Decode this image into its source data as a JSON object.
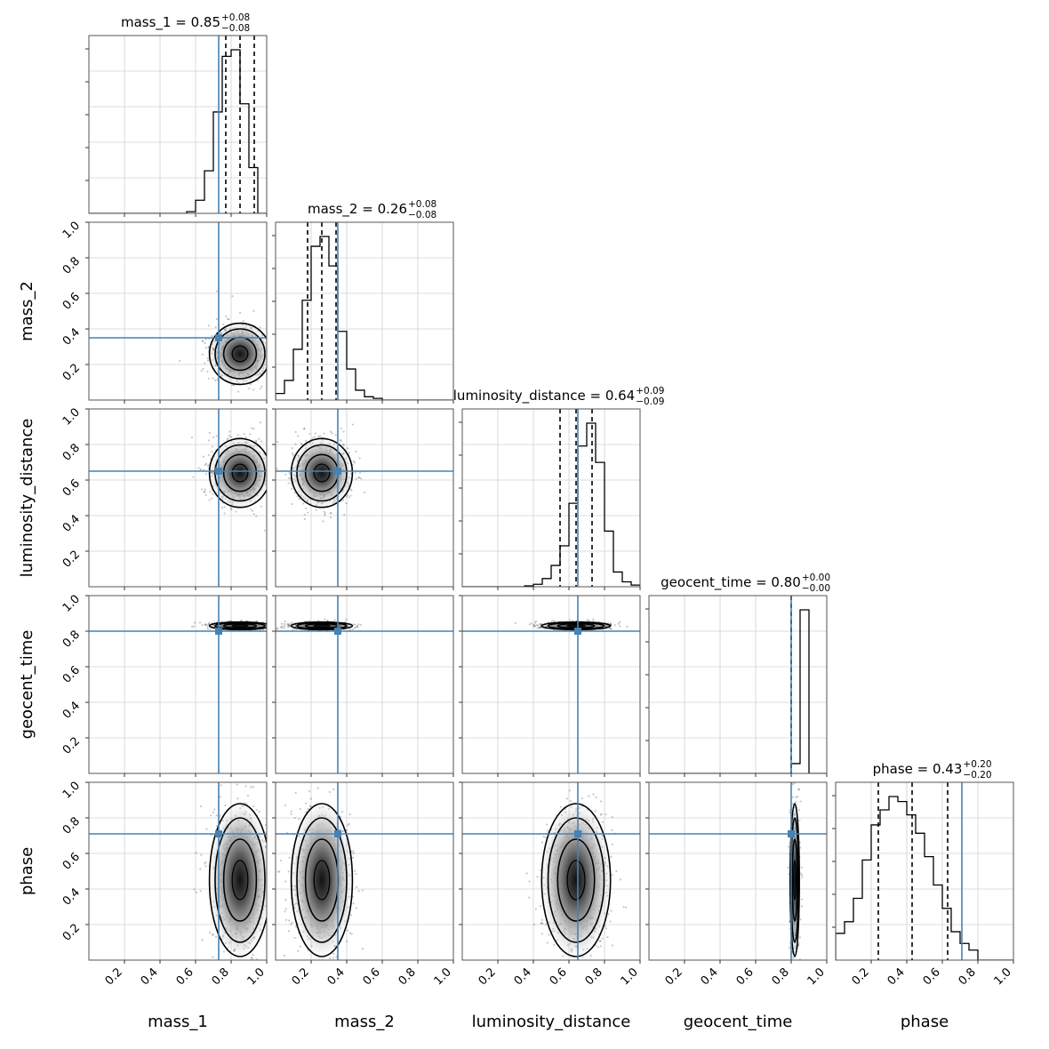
{
  "chart_data": {
    "type": "corner",
    "params": [
      "mass_1",
      "mass_2",
      "luminosity_distance",
      "geocent_time",
      "phase"
    ],
    "axis_labels": [
      "mass_1",
      "mass_2",
      "luminosity_distance",
      "geocent_time",
      "phase"
    ],
    "range": [
      0,
      1
    ],
    "ticks": [
      "0.2",
      "0.4",
      "0.6",
      "0.8",
      "1.0"
    ],
    "grid": true,
    "truth_color": "#4682b4",
    "truths": [
      0.73,
      0.35,
      0.65,
      0.8,
      0.71
    ],
    "titles": [
      {
        "name": "mass_1",
        "eq": " = 0.85",
        "plus": "+0.08",
        "minus": "−0.08"
      },
      {
        "name": "mass_2",
        "eq": " = 0.26",
        "plus": "+0.08",
        "minus": "−0.08"
      },
      {
        "name": "luminosity_distance",
        "eq": " = 0.64",
        "plus": "+0.09",
        "minus": "−0.09"
      },
      {
        "name": "geocent_time",
        "eq": " = 0.80",
        "plus": "+0.00",
        "minus": "−0.00"
      },
      {
        "name": "phase",
        "eq": " = 0.43",
        "plus": "+0.20",
        "minus": "−0.20"
      }
    ],
    "quantiles": [
      [
        0.77,
        0.85,
        0.93
      ],
      [
        0.18,
        0.26,
        0.34
      ],
      [
        0.55,
        0.64,
        0.73
      ],
      [
        0.8,
        0.8,
        0.8
      ],
      [
        0.24,
        0.43,
        0.63
      ]
    ],
    "histograms": [
      {
        "bin_start": 0.55,
        "bin_width": 0.05,
        "heights": [
          0.01,
          0.08,
          0.26,
          0.62,
          0.96,
          1.0,
          0.67,
          0.28
        ]
      },
      {
        "bin_start": 0.0,
        "bin_width": 0.05,
        "heights": [
          0.04,
          0.12,
          0.31,
          0.61,
          0.94,
          1.0,
          0.82,
          0.42,
          0.19,
          0.06,
          0.02,
          0.01
        ]
      },
      {
        "bin_start": 0.35,
        "bin_width": 0.05,
        "heights": [
          0.005,
          0.015,
          0.05,
          0.13,
          0.25,
          0.51,
          0.86,
          1.0,
          0.76,
          0.34,
          0.09,
          0.03,
          0.01
        ]
      },
      {
        "bin_start": 0.75,
        "bin_width": 0.05,
        "heights": [
          0.0,
          0.06,
          1.0,
          0.0
        ]
      },
      {
        "bin_start": 0.0,
        "bin_width": 0.05,
        "heights": [
          0.16,
          0.23,
          0.37,
          0.6,
          0.81,
          0.9,
          0.98,
          0.95,
          0.87,
          0.76,
          0.62,
          0.45,
          0.31,
          0.17,
          0.1,
          0.06
        ]
      }
    ],
    "posterior_2d": [
      {
        "x": "mass_1",
        "y": "mass_2",
        "cx": 0.85,
        "cy": 0.26,
        "sx": 0.08,
        "sy": 0.08
      },
      {
        "x": "mass_1",
        "y": "luminosity_distance",
        "cx": 0.85,
        "cy": 0.64,
        "sx": 0.08,
        "sy": 0.09
      },
      {
        "x": "mass_2",
        "y": "luminosity_distance",
        "cx": 0.26,
        "cy": 0.64,
        "sx": 0.08,
        "sy": 0.09
      },
      {
        "x": "mass_1",
        "y": "geocent_time",
        "cx": 0.85,
        "cy": 0.83,
        "sx": 0.08,
        "sy": 0.01
      },
      {
        "x": "mass_2",
        "y": "geocent_time",
        "cx": 0.26,
        "cy": 0.83,
        "sx": 0.08,
        "sy": 0.01
      },
      {
        "x": "luminosity_distance",
        "y": "geocent_time",
        "cx": 0.64,
        "cy": 0.83,
        "sx": 0.09,
        "sy": 0.01
      },
      {
        "x": "mass_1",
        "y": "phase",
        "cx": 0.85,
        "cy": 0.45,
        "sx": 0.08,
        "sy": 0.2
      },
      {
        "x": "mass_2",
        "y": "phase",
        "cx": 0.26,
        "cy": 0.45,
        "sx": 0.08,
        "sy": 0.2
      },
      {
        "x": "luminosity_distance",
        "y": "phase",
        "cx": 0.64,
        "cy": 0.45,
        "sx": 0.09,
        "sy": 0.2
      },
      {
        "x": "geocent_time",
        "y": "phase",
        "cx": 0.82,
        "cy": 0.45,
        "sx": 0.012,
        "sy": 0.2
      }
    ]
  }
}
